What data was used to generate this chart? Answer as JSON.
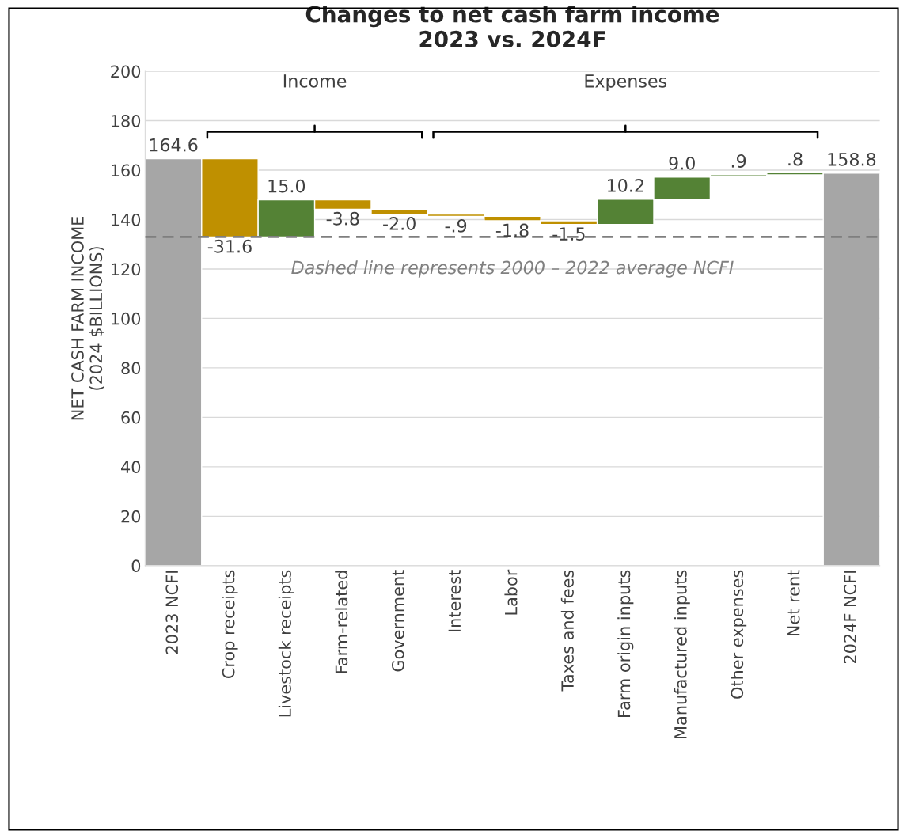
{
  "chart_data": {
    "type": "bar",
    "title": "Changes to net cash farm income\n2023 vs. 2024F",
    "ylabel": "NET CASH FARM INCOME\n(2024 $BILLIONS)",
    "categories": [
      "2023 NCFI",
      "Crop receipts",
      "Livestock receipts",
      "Farm-related",
      "Government",
      "Interest",
      "Labor",
      "Taxes and fees",
      "Farm origin inputs",
      "Manufactured inputs",
      "Other expenses",
      "Net rent",
      "2024F NCFI"
    ],
    "values": [
      164.6,
      -31.6,
      15.0,
      -3.8,
      -2.0,
      -0.9,
      -1.8,
      -1.5,
      10.2,
      9.0,
      0.9,
      0.8,
      158.8
    ],
    "base": [
      0,
      164.6,
      133.0,
      148.0,
      144.2,
      142.2,
      141.3,
      139.5,
      138.0,
      148.2,
      157.2,
      158.1,
      0
    ],
    "colors": [
      "#a6a6a6",
      "#bf9000",
      "#548235",
      "#bf9000",
      "#bf9000",
      "#bf9000",
      "#bf9000",
      "#bf9000",
      "#548235",
      "#548235",
      "#548235",
      "#548235",
      "#a6a6a6"
    ],
    "value_labels": [
      "164.6",
      "-31.6",
      "15.0",
      "-3.8",
      "-2.0",
      "-.9",
      "-1.8",
      "-1.5",
      "10.2",
      "9.0",
      ".9",
      ".8",
      "158.8"
    ],
    "ylim": [
      0,
      200
    ],
    "yticks": [
      0,
      20,
      40,
      60,
      80,
      100,
      120,
      140,
      160,
      180,
      200
    ],
    "grid": "y",
    "ref_lines": [
      {
        "axis": "y",
        "value": 133,
        "color": "#7f7f7f",
        "line_style": "dashed"
      }
    ],
    "annotations": [
      "Income",
      "Expenses",
      "Dashed line represents 2000 – 2022 average NCFI"
    ]
  }
}
